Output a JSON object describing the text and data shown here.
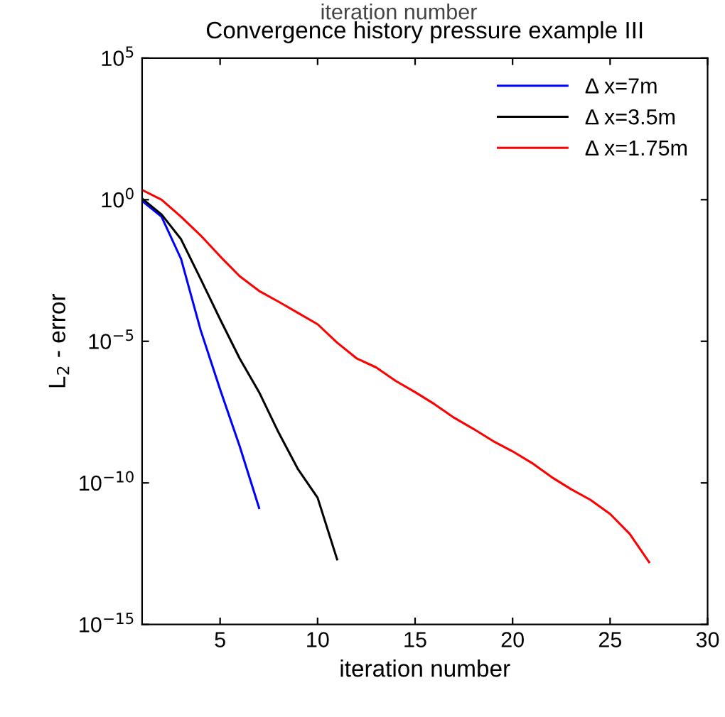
{
  "chart_data": {
    "type": "line",
    "title": "Convergence history pressure example III",
    "xlabel": "iteration number",
    "ylabel": "L$_{2}$ - error",
    "annotations": [
      "iteration number"
    ],
    "log": "y",
    "grid": false,
    "legend": "top right",
    "marker": "none",
    "line_style": "solid",
    "xlim": [
      1,
      30
    ],
    "xticks": [
      5,
      10,
      15,
      20,
      25,
      30
    ],
    "ylim": [
      1e-15,
      100000.0
    ],
    "yticks": [
      {
        "value": 100000.0,
        "label": "10$^{5}$"
      },
      {
        "value": 1,
        "label": "10$^{0}$"
      },
      {
        "value": 1e-05,
        "label": "10$^{−5}$"
      },
      {
        "value": 1e-10,
        "label": "10$^{−10}$"
      },
      {
        "value": 1e-15,
        "label": "10$^{−15}$"
      }
    ],
    "series": [
      {
        "name": "Δ x=7m",
        "color": "#0000ff",
        "x": [
          1,
          2,
          3,
          4,
          5,
          6,
          7
        ],
        "values": [
          0.9,
          0.25,
          0.008,
          2.5e-05,
          2e-07,
          2e-09,
          1.3e-11
        ]
      },
      {
        "name": "Δ x=3.5m",
        "color": "#000000",
        "x": [
          1,
          2,
          3,
          4,
          5,
          6,
          7,
          8,
          9,
          10,
          11
        ],
        "values": [
          1.1,
          0.3,
          0.04,
          0.0016,
          6e-05,
          2.5e-06,
          1.6e-07,
          6e-09,
          3e-10,
          3e-11,
          2e-13
        ]
      },
      {
        "name": "Δ x=1.75m",
        "color": "#ff0000",
        "x": [
          1,
          2,
          3,
          4,
          5,
          6,
          7,
          8,
          9,
          10,
          11,
          12,
          13,
          14,
          15,
          16,
          17,
          18,
          19,
          20,
          21,
          22,
          23,
          24,
          25,
          26,
          27
        ],
        "values": [
          2.2,
          1,
          0.25,
          0.055,
          0.01,
          0.002,
          0.0006,
          0.00025,
          0.0001,
          4e-05,
          9e-06,
          2.5e-06,
          1.2e-06,
          4e-07,
          1.6e-07,
          6e-08,
          2e-08,
          8e-09,
          3e-09,
          1.3e-09,
          5e-10,
          1.6e-10,
          6e-11,
          2.5e-11,
          8e-12,
          1.6e-12,
          1.6e-13
        ]
      }
    ]
  }
}
